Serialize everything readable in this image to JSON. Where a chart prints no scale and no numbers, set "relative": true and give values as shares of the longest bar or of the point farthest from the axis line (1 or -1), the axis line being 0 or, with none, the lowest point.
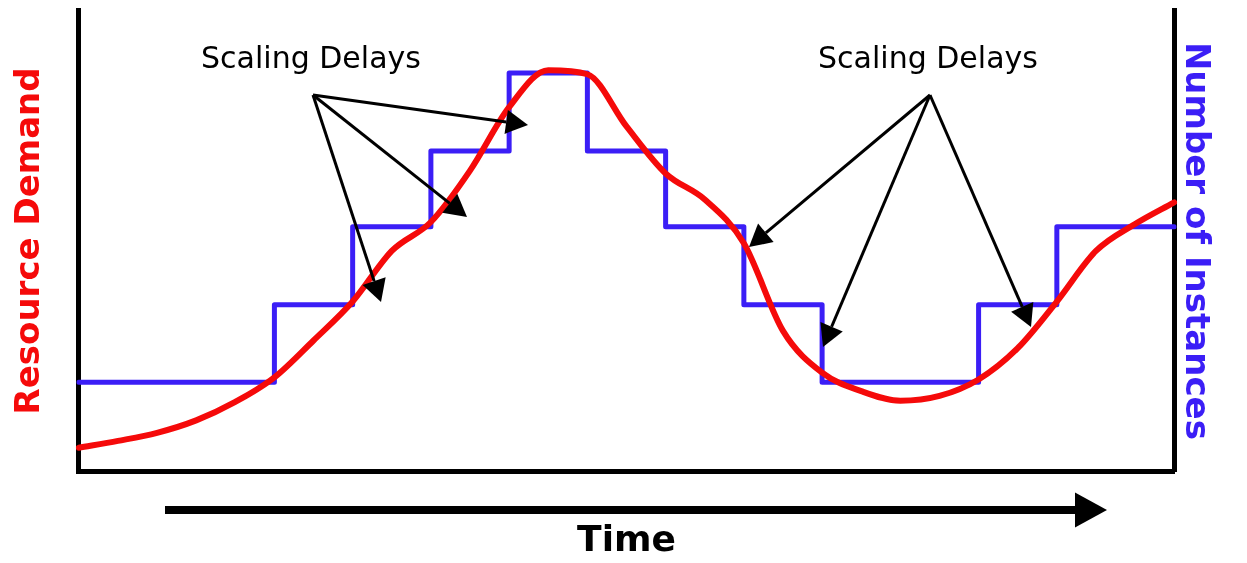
{
  "chart_data": {
    "type": "line",
    "relative": true,
    "xlabel": "Time",
    "ylabel": "Resource Demand",
    "y2label": "Number of Instances",
    "legend": false,
    "grid": false,
    "marker": "none",
    "categories": [
      null,
      null,
      null,
      null,
      null,
      null,
      null,
      null,
      null,
      null,
      null,
      null,
      null,
      null,
      null,
      null,
      null,
      null,
      null,
      null,
      null,
      null,
      null,
      null,
      null,
      null,
      null,
      null,
      null
    ],
    "series": [
      {
        "color": "#f50a0a",
        "values": [
          0.06,
          0.077,
          0.097,
          0.128,
          0.174,
          0.235,
          0.327,
          0.424,
          0.55,
          0.622,
          0.75,
          0.908,
          1,
          0.99,
          0.86,
          0.743,
          0.678,
          0.569,
          0.351,
          0.247,
          0.201,
          0.177,
          0.189,
          0.23,
          0.308,
          0.424,
          0.55,
          0.617,
          0.671
        ]
      },
      {
        "type": "step",
        "color": "#3b1ef6",
        "values": [
          0.223,
          0.223,
          0.223,
          0.223,
          0.223,
          0.223,
          0.416,
          0.416,
          0.61,
          0.61,
          0.799,
          0.799,
          0.993,
          0.993,
          0.799,
          0.799,
          0.61,
          0.61,
          0.416,
          0.416,
          0.223,
          0.223,
          0.223,
          0.223,
          0.416,
          0.416,
          0.61,
          0.61,
          0.61
        ]
      }
    ],
    "annotations": [
      "Scaling Delays",
      "Scaling Delays"
    ]
  }
}
